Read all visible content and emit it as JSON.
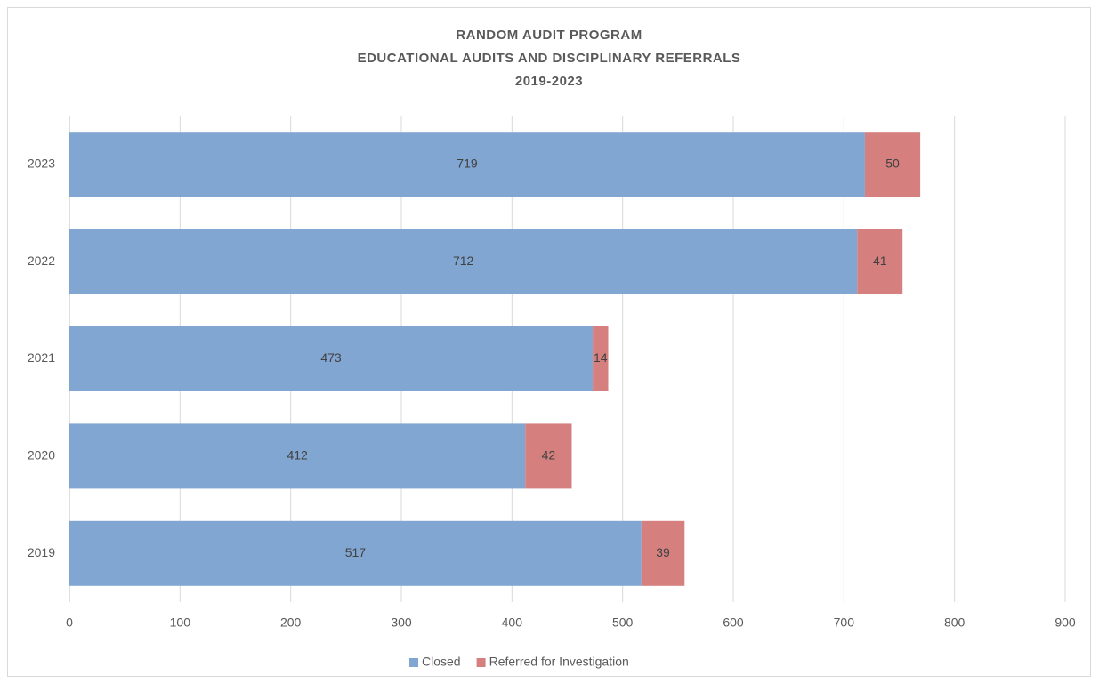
{
  "chart_data": {
    "type": "stacked-bar-horizontal",
    "title": [
      "RANDOM AUDIT PROGRAM",
      "EDUCATIONAL AUDITS AND DISCIPLINARY REFERRALS",
      "2019-2023"
    ],
    "categories": [
      "2019",
      "2020",
      "2021",
      "2022",
      "2023"
    ],
    "series": [
      {
        "name": "Closed",
        "color": "#82a6d2",
        "values": [
          517,
          412,
          473,
          712,
          719
        ]
      },
      {
        "name": "Referred for Investigation",
        "color": "#d5807f",
        "values": [
          39,
          42,
          14,
          41,
          50
        ]
      }
    ],
    "xlim": [
      0,
      900
    ],
    "xticks": [
      0,
      100,
      200,
      300,
      400,
      500,
      600,
      700,
      800,
      900
    ],
    "grid": true,
    "legend": "bottom"
  }
}
